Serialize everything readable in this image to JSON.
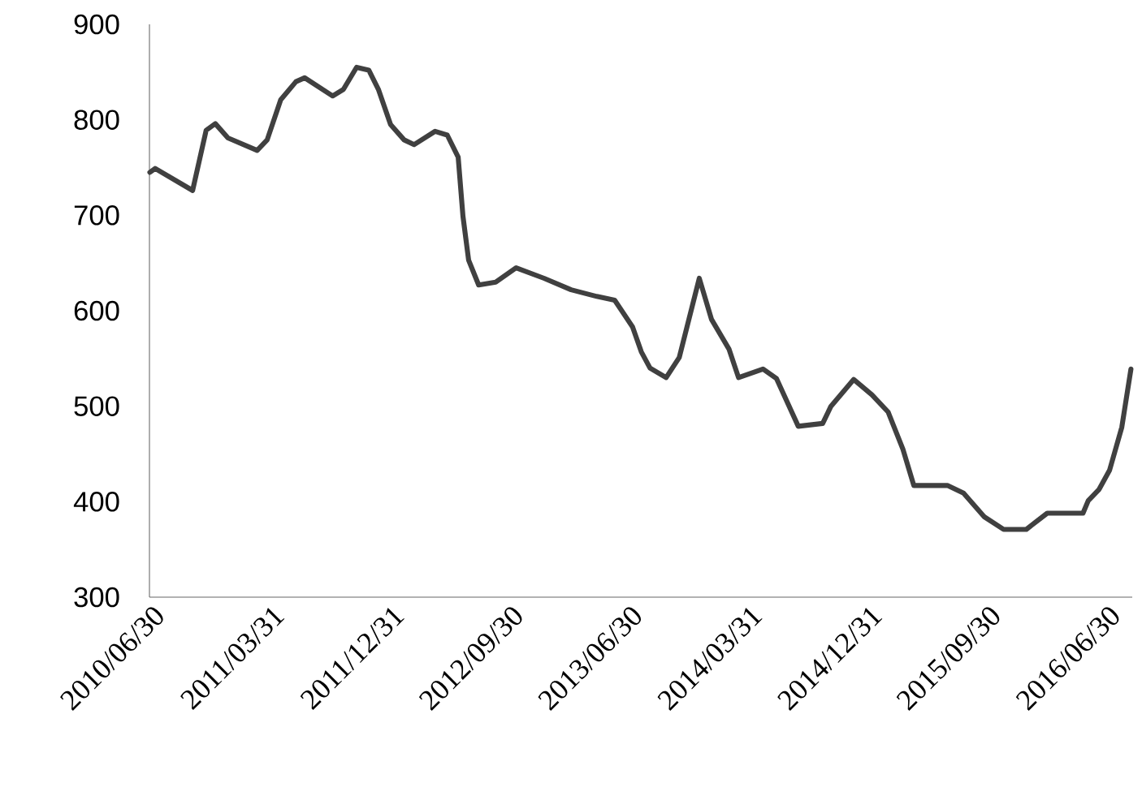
{
  "chart_data": {
    "type": "line",
    "x": [
      "2010-07-01",
      "2010-07-13",
      "2010-10-07",
      "2010-11-07",
      "2010-11-28",
      "2010-12-27",
      "2011-03-04",
      "2011-03-27",
      "2011-04-27",
      "2011-06-01",
      "2011-06-21",
      "2011-08-24",
      "2011-09-18",
      "2011-10-18",
      "2011-11-15",
      "2011-12-07",
      "2012-01-04",
      "2012-02-04",
      "2012-02-27",
      "2012-04-15",
      "2012-05-13",
      "2012-06-07",
      "2012-06-18",
      "2012-07-01",
      "2012-07-24",
      "2012-09-01",
      "2012-10-18",
      "2012-12-21",
      "2013-02-21",
      "2013-04-21",
      "2013-06-01",
      "2013-07-12",
      "2013-08-01",
      "2013-08-21",
      "2013-09-27",
      "2013-10-27",
      "2013-12-12",
      "2014-01-09",
      "2014-02-18",
      "2014-03-12",
      "2014-05-07",
      "2014-06-07",
      "2014-07-27",
      "2014-09-21",
      "2014-10-10",
      "2014-12-01",
      "2015-01-12",
      "2015-02-18",
      "2015-03-24",
      "2015-04-18",
      "2015-05-24",
      "2015-07-04",
      "2015-08-10",
      "2015-09-27",
      "2015-11-10",
      "2016-01-01",
      "2016-02-18",
      "2016-05-10",
      "2016-05-22",
      "2016-06-16",
      "2016-07-10",
      "2016-08-07",
      "2016-08-28"
    ],
    "series": [
      {
        "color": "#404040",
        "values": [
          745,
          749,
          726,
          789,
          796,
          781,
          768,
          779,
          821,
          840,
          844,
          825,
          832,
          855,
          852,
          832,
          795,
          779,
          774,
          788,
          784,
          761,
          699,
          653,
          627,
          630,
          645,
          634,
          622,
          615,
          611,
          583,
          557,
          540,
          530,
          551,
          634,
          591,
          560,
          530,
          539,
          529,
          479,
          482,
          500,
          528,
          512,
          494,
          455,
          417,
          417,
          417,
          409,
          384,
          371,
          371,
          388,
          388,
          401,
          413,
          433,
          478,
          539
        ]
      }
    ],
    "xlim": [
      "2010-06-30",
      "2016-08-31"
    ],
    "xticks": [
      {
        "value": "2010-06-30",
        "label": "2010/06/30"
      },
      {
        "value": "2011-03-31",
        "label": "2011/03/31"
      },
      {
        "value": "2011-12-31",
        "label": "2011/12/31"
      },
      {
        "value": "2012-09-30",
        "label": "2012/09/30"
      },
      {
        "value": "2013-06-30",
        "label": "2013/06/30"
      },
      {
        "value": "2014-03-31",
        "label": "2014/03/31"
      },
      {
        "value": "2014-12-31",
        "label": "2014/12/31"
      },
      {
        "value": "2015-09-30",
        "label": "2015/09/30"
      },
      {
        "value": "2016-06-30",
        "label": "2016/06/30"
      }
    ],
    "ylim": [
      300,
      900
    ],
    "yticks": [
      300,
      400,
      500,
      600,
      700,
      800,
      900
    ],
    "marker": "none",
    "line_style": "solid"
  }
}
